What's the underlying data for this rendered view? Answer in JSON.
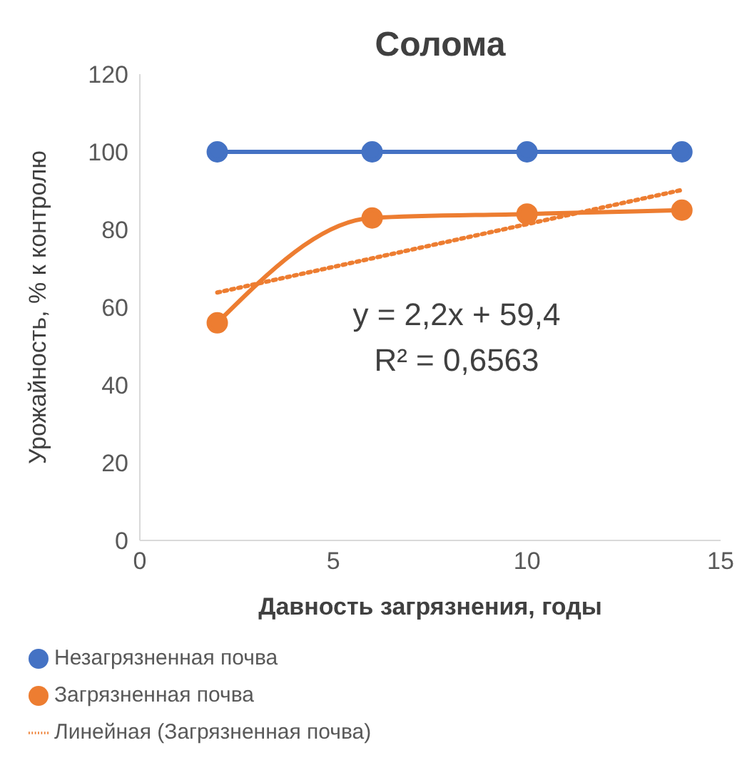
{
  "chart_data": {
    "type": "line",
    "title": "Солома",
    "xlabel": "Давность загрязнения, годы",
    "ylabel": "Урожайность, % к контролю",
    "x": [
      2,
      6,
      10,
      14
    ],
    "series": [
      {
        "name": "Незагрязненная почва",
        "color": "#4472c4",
        "values": [
          100,
          100,
          100,
          100
        ],
        "marker": "circle",
        "line_style": "solid"
      },
      {
        "name": "Загрязненная почва",
        "color": "#ed7d31",
        "values": [
          56,
          83,
          84,
          85
        ],
        "marker": "circle",
        "line_style": "solid"
      },
      {
        "name": "Линейная (Загрязненная почва)",
        "color": "#ed7d31",
        "x": [
          2,
          14
        ],
        "values": [
          63.8,
          90.2
        ],
        "marker": "none",
        "line_style": "dotted"
      }
    ],
    "annotations": [
      "y = 2,2x + 59,4",
      "R² = 0,6563"
    ],
    "xlim": [
      0,
      15
    ],
    "xticks": [
      0,
      5,
      10,
      15
    ],
    "ylim": [
      0,
      120
    ],
    "yticks": [
      0,
      20,
      40,
      60,
      80,
      100,
      120
    ],
    "grid": false,
    "legend": "bottom"
  }
}
